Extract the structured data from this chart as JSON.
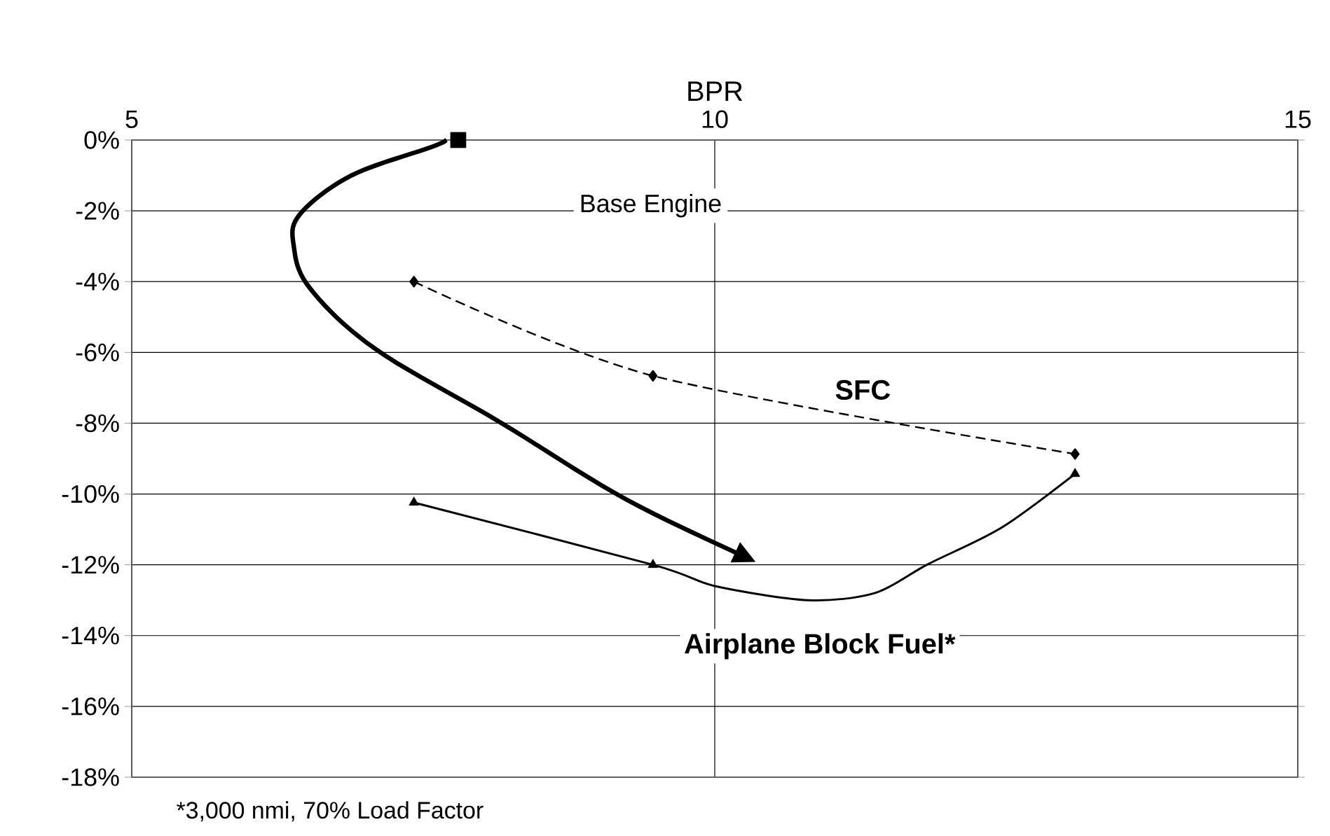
{
  "chart_data": {
    "type": "line",
    "xlabel": "BPR",
    "xlim": [
      5,
      15
    ],
    "xticks": [
      5,
      10,
      15
    ],
    "ylim": [
      -18,
      0
    ],
    "yticks": [
      {
        "value": 0,
        "label": "0%"
      },
      {
        "value": -2,
        "label": "-2%"
      },
      {
        "value": -4,
        "label": "-4%"
      },
      {
        "value": -6,
        "label": "-6%"
      },
      {
        "value": -8,
        "label": "-8%"
      },
      {
        "value": -10,
        "label": "-10%"
      },
      {
        "value": -12,
        "label": "-12%"
      },
      {
        "value": -14,
        "label": "-14%"
      },
      {
        "value": -16,
        "label": "-16%"
      },
      {
        "value": -18,
        "label": "-18%"
      }
    ],
    "grid": true,
    "legend": false,
    "series": [
      {
        "name": "SFC",
        "color": "#000000",
        "line_style": "dashed",
        "marker": "diamond",
        "x": [
          7.42,
          9.47,
          13.09
        ],
        "values": [
          -4.0,
          -6.66,
          -8.87
        ]
      },
      {
        "name": "Airplane Block Fuel*",
        "color": "#000000",
        "line_style": "solid",
        "marker": "none",
        "x": [
          7.42,
          9.47,
          10.0,
          10.8,
          11.37,
          11.83,
          12.46,
          13.09
        ],
        "values": [
          -10.24,
          -12.0,
          -12.6,
          -13.0,
          -12.8,
          -11.98,
          -10.95,
          -9.43
        ]
      },
      {
        "type": "scatter",
        "color": "#000000",
        "marker": "triangle",
        "x": [
          7.42,
          9.47,
          13.09
        ],
        "values": [
          -10.24,
          -12.0,
          -9.43
        ]
      },
      {
        "type": "scatter",
        "color": "#000000",
        "marker": "square",
        "x": [
          7.8
        ],
        "values": [
          0
        ]
      }
    ],
    "annotations": [
      "Base Engine",
      "*3,000 nmi, 70% Load Factor"
    ]
  }
}
